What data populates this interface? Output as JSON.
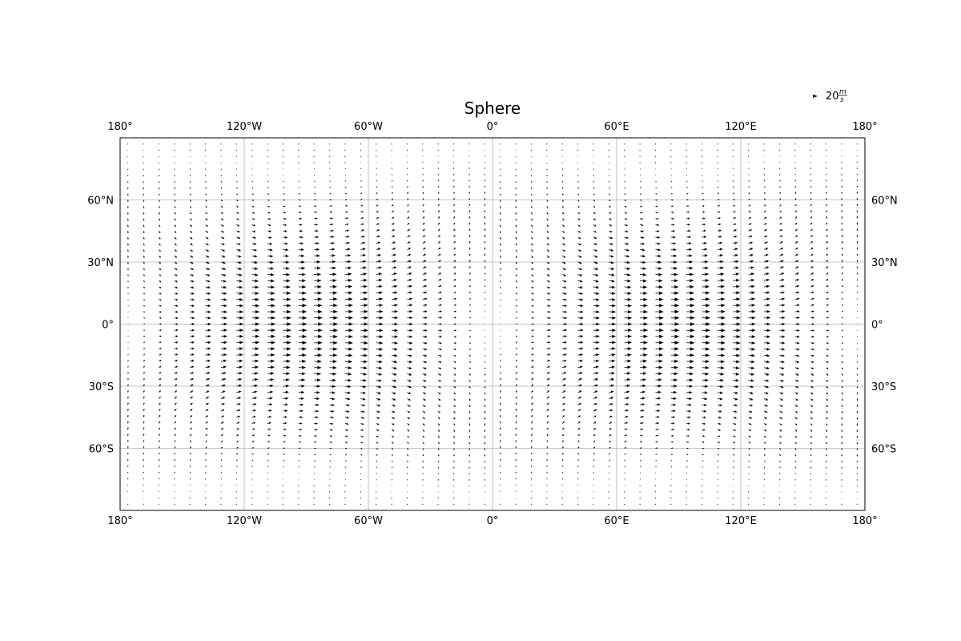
{
  "chart_data": {
    "type": "vector-field",
    "title": "Sphere",
    "projection": "equirectangular",
    "xlim": [
      -180,
      180
    ],
    "ylim": [
      -90,
      90
    ],
    "grid": true,
    "x_ticks": [
      -180,
      -120,
      -60,
      0,
      60,
      120,
      180
    ],
    "x_tick_labels": [
      "180°",
      "120°W",
      "60°W",
      "0°",
      "60°E",
      "120°E",
      "180°"
    ],
    "y_ticks": [
      60,
      30,
      0,
      -30,
      -60
    ],
    "y_tick_labels": [
      "60°N",
      "30°N",
      "0°",
      "30°S",
      "60°S"
    ],
    "field": {
      "description_wave": "zonal wind u = 20·cos²(lat)·|cos(lon)|-shaped two-cell pattern, v small",
      "lon_step": 7.5,
      "lat_step": 3,
      "max_speed": 20
    },
    "quiver_key": {
      "value": 20,
      "label_main": "20",
      "label_num": "m",
      "label_den": "s"
    }
  }
}
